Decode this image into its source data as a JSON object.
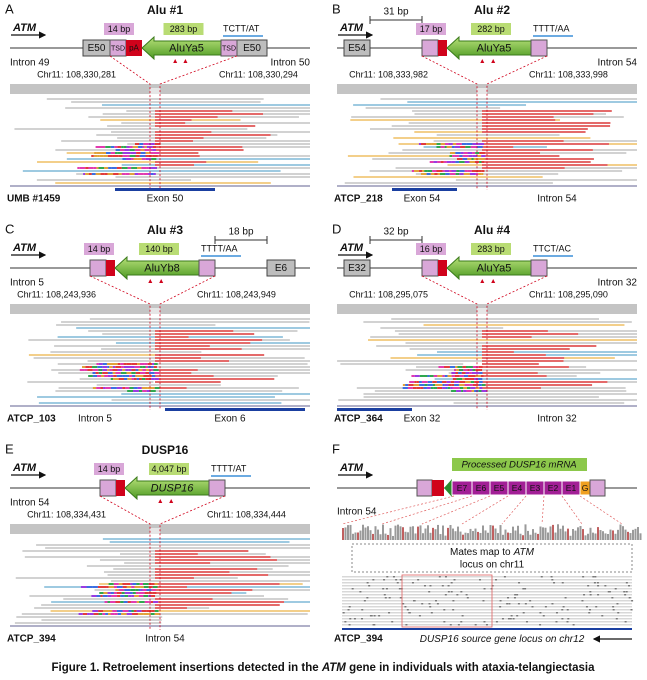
{
  "panels": [
    {
      "letter": "A",
      "title": "Alu #1",
      "gene": "ATM",
      "tsd_length": "14 bp",
      "insert_length": "283 bp",
      "tail": "TCTT/AT",
      "insert": "AluYa5",
      "exons": [
        "E50",
        "E50"
      ],
      "tsd_labels": [
        "TSD",
        "TSD"
      ],
      "polya": "pA",
      "left_region": "Intron 49",
      "right_region": "Intron 50",
      "breakpoints": [
        "Chr11: 108,330,281",
        "Chr11: 108,330,294"
      ],
      "sample": "UMB #1459",
      "track_labels": [
        "Exon 50"
      ]
    },
    {
      "letter": "B",
      "title": "Alu #2",
      "gene": "ATM",
      "distance": "31 bp",
      "tsd_length": "17 bp",
      "insert_length": "282 bp",
      "tail": "TTTT/AA",
      "insert": "AluYa5",
      "exons": [
        "E54"
      ],
      "right_region": "Intron 54",
      "breakpoints": [
        "Chr11: 108,333,982",
        "Chr11: 108,333,998"
      ],
      "sample": "ATCP_218",
      "track_labels": [
        "Exon 54",
        "Intron 54"
      ]
    },
    {
      "letter": "C",
      "title": "Alu #3",
      "gene": "ATM",
      "distance": "18 bp",
      "tsd_length": "14 bp",
      "insert_length": "140 bp",
      "tail": "TTTT/AA",
      "insert": "AluYb8",
      "exons": [
        "E6"
      ],
      "left_region": "Intron 5",
      "breakpoints": [
        "Chr11: 108,243,936",
        "Chr11: 108,243,949"
      ],
      "sample": "ATCP_103",
      "track_labels": [
        "Intron 5",
        "Exon 6"
      ]
    },
    {
      "letter": "D",
      "title": "Alu #4",
      "gene": "ATM",
      "distance": "32 bp",
      "tsd_length": "16 bp",
      "insert_length": "283 bp",
      "tail": "TTCT/AC",
      "insert": "AluYa5",
      "exons": [
        "E32"
      ],
      "right_region": "Intron 32",
      "breakpoints": [
        "Chr11: 108,295,075",
        "Chr11: 108,295,090"
      ],
      "sample": "ATCP_364",
      "track_labels": [
        "Exon 32",
        "Intron 32"
      ]
    },
    {
      "letter": "E",
      "title": "DUSP16",
      "gene": "ATM",
      "tsd_length": "14 bp",
      "insert_length": "4,047 bp",
      "tail": "TTTT/AT",
      "insert": "DUSP16",
      "left_region": "Intron 54",
      "breakpoints": [
        "Chr11: 108,334,431",
        "Chr11: 108,334,444"
      ],
      "sample": "ATCP_394",
      "track_labels": [
        "Intron 54"
      ]
    }
  ],
  "panel_f": {
    "letter": "F",
    "gene": "ATM",
    "mrna_label": "Processed DUSP16 mRNA",
    "region": "Intron 54",
    "exons": [
      "E7",
      "E6",
      "E5",
      "E4",
      "E3",
      "E2",
      "E1",
      "G"
    ],
    "mates_text": [
      "Mates map to",
      "ATM",
      "locus on chr11"
    ],
    "sample": "ATCP_394",
    "source_text": [
      "DUSP16",
      " source gene locus on chr12"
    ]
  },
  "caption": [
    "Figure 1. Retroelement insertions detected in the ",
    "ATM",
    " gene in individuals with ataxia-telangiectasia"
  ]
}
